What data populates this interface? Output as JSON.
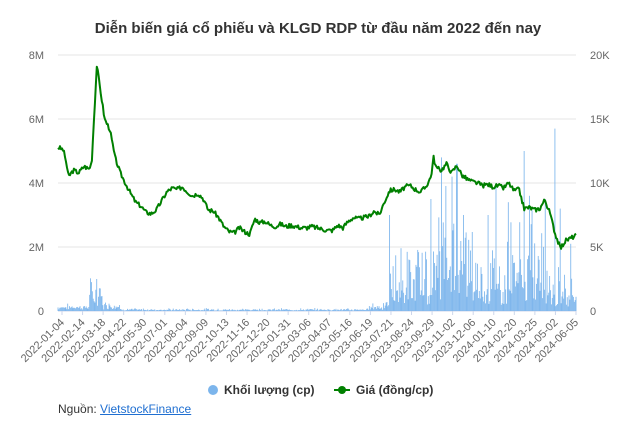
{
  "chart_data": {
    "type": "bar+line",
    "title": "Diễn biến giá cổ phiếu và KLGD RDP từ đầu năm 2022 đến nay",
    "left_axis": {
      "ticks": [
        "0",
        "2M",
        "4M",
        "6M",
        "8M"
      ],
      "values": [
        0,
        2000000,
        4000000,
        6000000,
        8000000
      ],
      "ylim": [
        0,
        8000000
      ]
    },
    "right_axis": {
      "ticks": [
        "0",
        "5K",
        "10K",
        "15K",
        "20K"
      ],
      "values": [
        0,
        5000,
        10000,
        15000,
        20000
      ],
      "ylim": [
        0,
        20000
      ]
    },
    "x_ticks": [
      "2022-01-04",
      "2022-02-14",
      "2022-03-18",
      "2022-04-22",
      "2022-05-30",
      "2022-07-01",
      "2022-08-04",
      "2022-09-09",
      "2022-10-13",
      "2022-11-16",
      "2022-12-20",
      "2023-01-31",
      "2023-03-06",
      "2023-04-07",
      "2023-05-16",
      "2023-06-19",
      "2023-07-21",
      "2023-08-24",
      "2023-09-29",
      "2023-11-02",
      "2023-12-06",
      "2024-01-10",
      "2024-02-20",
      "2024-03-25",
      "2024-05-02",
      "2024-06-05"
    ],
    "series": [
      {
        "name": "Khối lượng (cp)",
        "type": "bar",
        "color": "#7cb5ec",
        "segments": [
          {
            "start": 0,
            "end": 0.06,
            "base": 120000,
            "noise": 90000
          },
          {
            "start": 0.06,
            "end": 0.085,
            "base": 450000,
            "noise": 550000
          },
          {
            "start": 0.085,
            "end": 0.12,
            "base": 150000,
            "noise": 180000
          },
          {
            "start": 0.12,
            "end": 0.6,
            "base": 35000,
            "noise": 50000
          },
          {
            "start": 0.6,
            "end": 0.64,
            "base": 120000,
            "noise": 200000
          },
          {
            "start": 0.64,
            "end": 0.73,
            "base": 500000,
            "noise": 1800000
          },
          {
            "start": 0.73,
            "end": 0.8,
            "base": 900000,
            "noise": 3200000
          },
          {
            "start": 0.8,
            "end": 0.87,
            "base": 500000,
            "noise": 2000000
          },
          {
            "start": 0.87,
            "end": 0.95,
            "base": 700000,
            "noise": 2600000
          },
          {
            "start": 0.95,
            "end": 1.0,
            "base": 400000,
            "noise": 1000000
          }
        ],
        "peaks": [
          {
            "x": 0.074,
            "value": 1000000
          },
          {
            "x": 0.64,
            "value": 3000000
          },
          {
            "x": 0.72,
            "value": 3500000
          },
          {
            "x": 0.74,
            "value": 4800000
          },
          {
            "x": 0.76,
            "value": 4200000
          },
          {
            "x": 0.77,
            "value": 4600000
          },
          {
            "x": 0.83,
            "value": 3000000
          },
          {
            "x": 0.845,
            "value": 4000000
          },
          {
            "x": 0.87,
            "value": 3400000
          },
          {
            "x": 0.9,
            "value": 5000000
          },
          {
            "x": 0.91,
            "value": 3600000
          },
          {
            "x": 0.94,
            "value": 3500000
          },
          {
            "x": 0.96,
            "value": 5700000
          },
          {
            "x": 0.97,
            "value": 3200000
          },
          {
            "x": 0.99,
            "value": 2100000
          }
        ]
      },
      {
        "name": "Giá (đồng/cp)",
        "type": "line",
        "color": "#008000",
        "points": [
          [
            0.0,
            12800
          ],
          [
            0.01,
            12600
          ],
          [
            0.015,
            11800
          ],
          [
            0.02,
            10500
          ],
          [
            0.03,
            11000
          ],
          [
            0.04,
            10800
          ],
          [
            0.05,
            11300
          ],
          [
            0.06,
            11100
          ],
          [
            0.065,
            11600
          ],
          [
            0.07,
            15500
          ],
          [
            0.075,
            19200
          ],
          [
            0.08,
            17800
          ],
          [
            0.09,
            15000
          ],
          [
            0.1,
            14200
          ],
          [
            0.11,
            12000
          ],
          [
            0.12,
            10800
          ],
          [
            0.13,
            10000
          ],
          [
            0.14,
            9200
          ],
          [
            0.15,
            8500
          ],
          [
            0.16,
            8200
          ],
          [
            0.17,
            7700
          ],
          [
            0.18,
            7600
          ],
          [
            0.19,
            7900
          ],
          [
            0.2,
            8600
          ],
          [
            0.21,
            9300
          ],
          [
            0.22,
            9600
          ],
          [
            0.23,
            9500
          ],
          [
            0.24,
            9700
          ],
          [
            0.25,
            9300
          ],
          [
            0.26,
            9000
          ],
          [
            0.27,
            9200
          ],
          [
            0.28,
            8800
          ],
          [
            0.29,
            7900
          ],
          [
            0.3,
            7800
          ],
          [
            0.31,
            7300
          ],
          [
            0.32,
            6600
          ],
          [
            0.33,
            6200
          ],
          [
            0.34,
            6100
          ],
          [
            0.35,
            6500
          ],
          [
            0.36,
            6200
          ],
          [
            0.37,
            6000
          ],
          [
            0.38,
            7200
          ],
          [
            0.39,
            6900
          ],
          [
            0.4,
            7000
          ],
          [
            0.41,
            6700
          ],
          [
            0.42,
            6600
          ],
          [
            0.43,
            6800
          ],
          [
            0.44,
            6600
          ],
          [
            0.45,
            6700
          ],
          [
            0.46,
            6600
          ],
          [
            0.47,
            6500
          ],
          [
            0.48,
            6500
          ],
          [
            0.49,
            6600
          ],
          [
            0.5,
            6500
          ],
          [
            0.51,
            6400
          ],
          [
            0.52,
            6300
          ],
          [
            0.53,
            6300
          ],
          [
            0.54,
            6700
          ],
          [
            0.55,
            6500
          ],
          [
            0.56,
            7000
          ],
          [
            0.57,
            7300
          ],
          [
            0.58,
            7200
          ],
          [
            0.59,
            7300
          ],
          [
            0.6,
            7400
          ],
          [
            0.61,
            7800
          ],
          [
            0.62,
            7500
          ],
          [
            0.63,
            8500
          ],
          [
            0.64,
            9400
          ],
          [
            0.65,
            9500
          ],
          [
            0.66,
            9300
          ],
          [
            0.67,
            9700
          ],
          [
            0.68,
            9800
          ],
          [
            0.69,
            9500
          ],
          [
            0.7,
            9300
          ],
          [
            0.71,
            9700
          ],
          [
            0.72,
            10500
          ],
          [
            0.725,
            12000
          ],
          [
            0.73,
            11200
          ],
          [
            0.74,
            11000
          ],
          [
            0.75,
            11500
          ],
          [
            0.76,
            10800
          ],
          [
            0.77,
            11400
          ],
          [
            0.78,
            10600
          ],
          [
            0.79,
            10300
          ],
          [
            0.8,
            10100
          ],
          [
            0.81,
            10000
          ],
          [
            0.82,
            9800
          ],
          [
            0.83,
            9900
          ],
          [
            0.84,
            9700
          ],
          [
            0.85,
            9800
          ],
          [
            0.86,
            9600
          ],
          [
            0.87,
            10000
          ],
          [
            0.88,
            9400
          ],
          [
            0.89,
            9500
          ],
          [
            0.9,
            8000
          ],
          [
            0.91,
            8100
          ],
          [
            0.92,
            7900
          ],
          [
            0.93,
            8000
          ],
          [
            0.94,
            8700
          ],
          [
            0.95,
            7600
          ],
          [
            0.96,
            6000
          ],
          [
            0.97,
            4900
          ],
          [
            0.98,
            5500
          ],
          [
            0.99,
            5700
          ],
          [
            1.0,
            5900
          ]
        ]
      }
    ],
    "legend": {
      "placement": "bottom",
      "items": [
        "Khối lượng (cp)",
        "Giá (đồng/cp)"
      ]
    },
    "grid": {
      "horizontal": true
    }
  },
  "source": {
    "label": "Nguồn:",
    "link_text": "VietstockFinance"
  }
}
